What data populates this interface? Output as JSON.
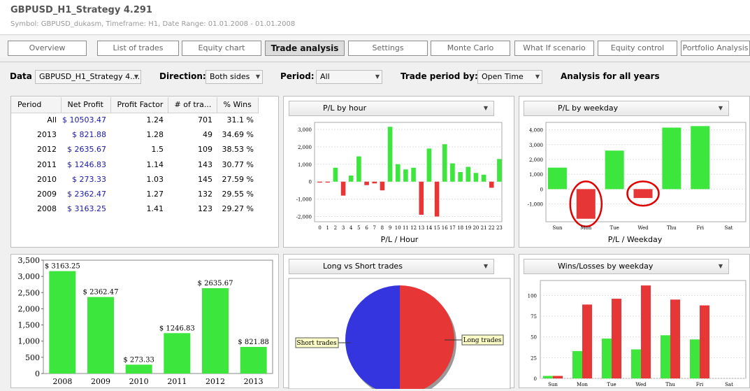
{
  "app": {
    "title": "GBPUSD_H1_Strategy 4.291",
    "subtitle": "Symbol: GBPUSD_dukasm, Timeframe: H1, Date Range: 01.01.2008 - 01.01.2008"
  },
  "tabs": [
    "Overview",
    "List of trades",
    "Equity chart",
    "Trade analysis",
    "Settings",
    "Monte Carlo",
    "What If scenario",
    "Equity control",
    "Portfolio Analysis"
  ],
  "filters": {
    "data_label": "Data",
    "data_value": "GBPUSD_H1_Strategy 4....",
    "direction_label": "Direction:",
    "direction_value": "Both sides",
    "period_label": "Period:",
    "period_value": "All",
    "trade_period_label": "Trade period by:",
    "trade_period_value": "Open Time",
    "analysis_text": "Analysis for all years"
  },
  "period_table": {
    "headers": [
      "Period",
      "Net Profit",
      "Profit Factor",
      "# of tra...",
      "% Wins"
    ],
    "rows": [
      [
        "All",
        "$ 10503.47",
        "1.24",
        "701",
        "31.1 %"
      ],
      [
        "2013",
        "$ 821.88",
        "1.28",
        "49",
        "34.69 %"
      ],
      [
        "2012",
        "$ 2635.67",
        "1.5",
        "109",
        "38.53 %"
      ],
      [
        "2011",
        "$ 1246.83",
        "1.14",
        "143",
        "30.77 %"
      ],
      [
        "2010",
        "$ 273.33",
        "1.03",
        "145",
        "27.59 %"
      ],
      [
        "2009",
        "$ 2362.47",
        "1.27",
        "132",
        "29.55 %"
      ],
      [
        "2008",
        "$ 3163.25",
        "1.41",
        "123",
        "29.27 %"
      ]
    ]
  },
  "panels": {
    "hour_dropdown": "P/L by hour",
    "weekday_dropdown": "P/L by weekday",
    "longshort_dropdown": "Long vs Short trades",
    "winloss_dropdown": "Wins/Losses by weekday",
    "hour_caption": "P/L / Hour",
    "weekday_caption": "P/L / Weekday"
  },
  "colors": {
    "profit": "#3de63d",
    "loss": "#e63636",
    "short": "#3535e0",
    "highlight": "#e00000"
  },
  "chart_data": [
    {
      "type": "bar",
      "categories": [
        "2008",
        "2009",
        "2010",
        "2011",
        "2012",
        "2013"
      ],
      "values": [
        3163.25,
        2362.47,
        273.33,
        1246.83,
        2635.67,
        821.88
      ],
      "labels": [
        "$ 3163.25",
        "$ 2362.47",
        "$ 273.33",
        "$ 1246.83",
        "$ 2635.67",
        "$ 821.88"
      ],
      "yticks": [
        "0",
        "500",
        "1,000",
        "1,500",
        "2,000",
        "2,500",
        "3,000",
        "3,500"
      ],
      "ylim": [
        0,
        3500
      ]
    },
    {
      "type": "bar",
      "categories": [
        "0",
        "1",
        "2",
        "3",
        "4",
        "5",
        "6",
        "7",
        "8",
        "9",
        "10",
        "11",
        "12",
        "13",
        "14",
        "15",
        "16",
        "17",
        "18",
        "19",
        "20",
        "21",
        "22",
        "23"
      ],
      "values": [
        -50,
        -50,
        800,
        -800,
        350,
        1450,
        -200,
        -100,
        -500,
        3150,
        1000,
        700,
        800,
        -1900,
        1900,
        -2000,
        2150,
        1050,
        550,
        850,
        500,
        400,
        -350,
        1300
      ],
      "yticks": [
        "-2,000",
        "-1,000",
        "0",
        "1,000",
        "2,000",
        "3,000"
      ],
      "ylim": [
        -2300,
        3400
      ],
      "xlabel": "P/L / Hour"
    },
    {
      "type": "bar",
      "categories": [
        "Sun",
        "Mon",
        "Tue",
        "Wed",
        "Thu",
        "Fri",
        "Sat"
      ],
      "values": [
        1450,
        -2000,
        2600,
        -600,
        4150,
        4250,
        0
      ],
      "yticks": [
        "-1,000",
        "0",
        "1,000",
        "2,000",
        "3,000",
        "4,000"
      ],
      "ylim": [
        -2200,
        4500
      ],
      "xlabel": "P/L / Weekday"
    },
    {
      "type": "pie",
      "categories": [
        "Short trades",
        "Long trades"
      ],
      "values": [
        50.5,
        49.5
      ]
    },
    {
      "type": "bar",
      "categories": [
        "Sun",
        "Mon",
        "Tue",
        "Wed",
        "Thu",
        "Fri",
        "Sat"
      ],
      "series": [
        {
          "values": [
            3,
            33,
            48,
            35,
            52,
            47,
            0
          ]
        },
        {
          "values": [
            3,
            89,
            96,
            112,
            95,
            88,
            0
          ]
        }
      ],
      "yticks": [
        "0",
        "25",
        "50",
        "75",
        "100"
      ],
      "ylim": [
        0,
        118
      ]
    }
  ]
}
